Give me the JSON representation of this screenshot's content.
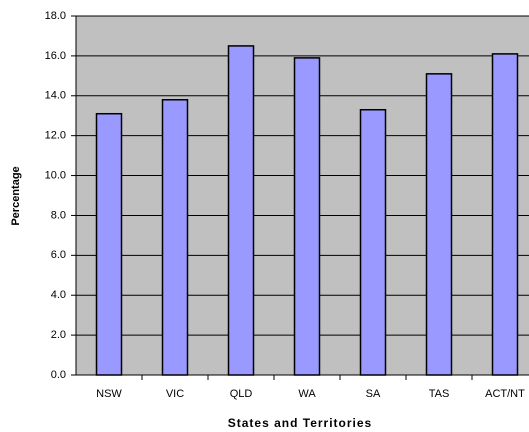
{
  "chart_data": {
    "type": "bar",
    "x_label": "States and Territories",
    "y_label": "Percentage",
    "categories": [
      "NSW",
      "VIC",
      "QLD",
      "WA",
      "SA",
      "TAS",
      "ACT/NT"
    ],
    "values": [
      13.1,
      13.8,
      16.5,
      15.9,
      13.3,
      15.1,
      16.1
    ],
    "color": "#9999ff",
    "ylim": [
      0,
      18
    ],
    "yticks": [
      {
        "value": 0,
        "label": "0.0"
      },
      {
        "value": 2,
        "label": "2.0"
      },
      {
        "value": 4,
        "label": "4.0"
      },
      {
        "value": 6,
        "label": "6.0"
      },
      {
        "value": 8,
        "label": "8.0"
      },
      {
        "value": 10,
        "label": "10.0"
      },
      {
        "value": 12,
        "label": "12.0"
      },
      {
        "value": 14,
        "label": "14.0"
      },
      {
        "value": 16,
        "label": "16.0"
      },
      {
        "value": 18,
        "label": "18.0"
      }
    ],
    "grid": true
  }
}
